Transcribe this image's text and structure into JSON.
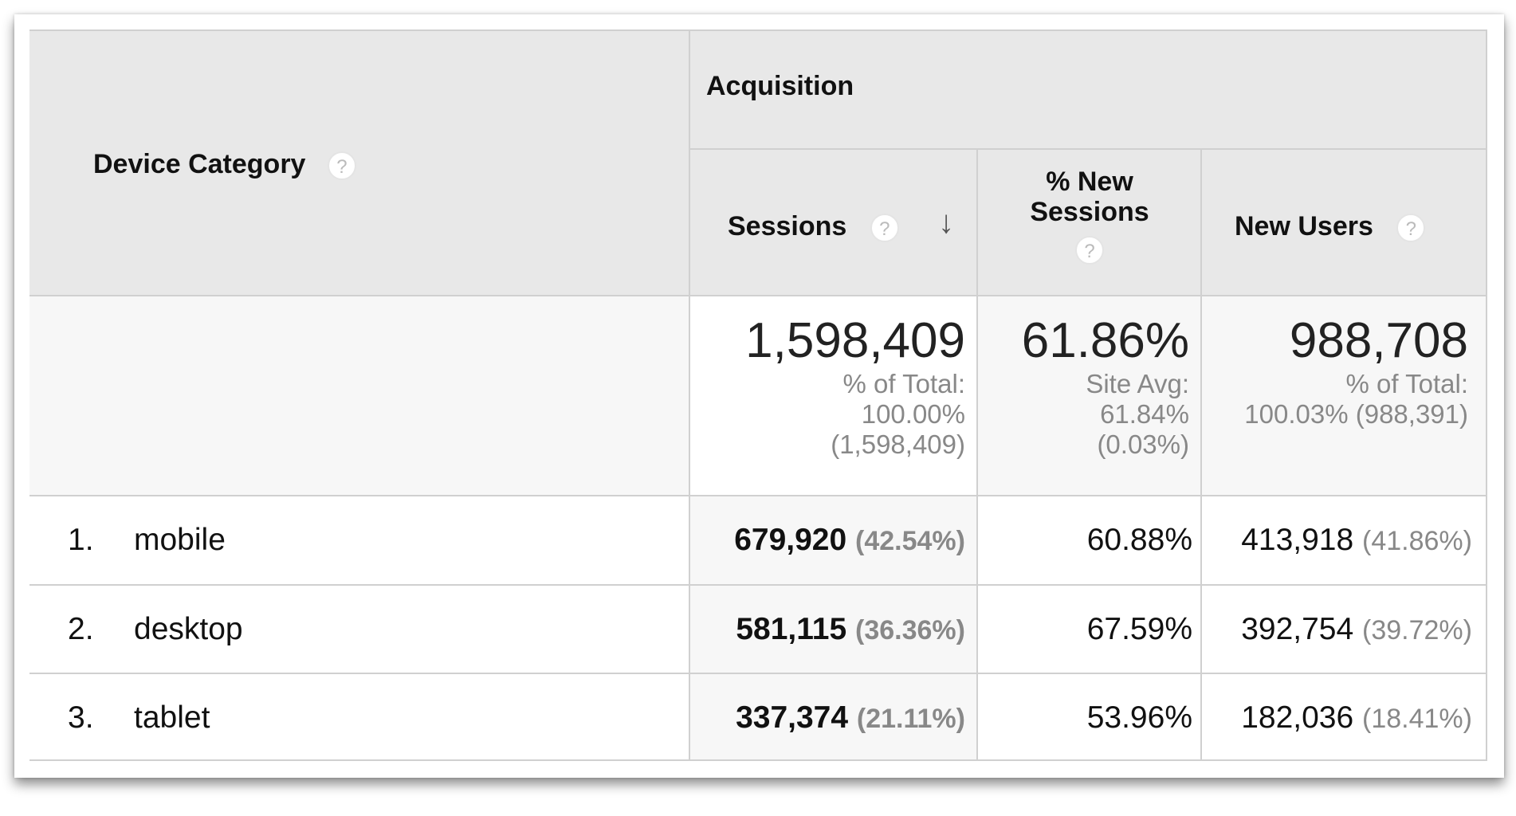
{
  "header": {
    "dimension": "Device Category",
    "group": "Acquisition",
    "columns": [
      {
        "label": "Sessions",
        "sorted": "descending"
      },
      {
        "label_line1": "% New",
        "label_line2": "Sessions"
      },
      {
        "label": "New Users"
      }
    ],
    "help_icon": "?"
  },
  "summary": {
    "sessions": {
      "value": "1,598,409",
      "line1": "% of Total:",
      "line2": "100.00%",
      "line3": "(1,598,409)"
    },
    "new_sessions": {
      "value": "61.86%",
      "line1": "Site Avg:",
      "line2": "61.84%",
      "line3": "(0.03%)"
    },
    "new_users": {
      "value": "988,708",
      "line1": "% of Total:",
      "line2": "100.03% (988,391)"
    }
  },
  "rows": [
    {
      "index": "1.",
      "device": "mobile",
      "sessions": "679,920",
      "sessions_pct": "(42.54%)",
      "new_sessions": "60.88%",
      "new_users": "413,918",
      "new_users_pct": "(41.86%)"
    },
    {
      "index": "2.",
      "device": "desktop",
      "sessions": "581,115",
      "sessions_pct": "(36.36%)",
      "new_sessions": "67.59%",
      "new_users": "392,754",
      "new_users_pct": "(39.72%)"
    },
    {
      "index": "3.",
      "device": "tablet",
      "sessions": "337,374",
      "sessions_pct": "(21.11%)",
      "new_sessions": "53.96%",
      "new_users": "182,036",
      "new_users_pct": "(18.41%)"
    }
  ]
}
